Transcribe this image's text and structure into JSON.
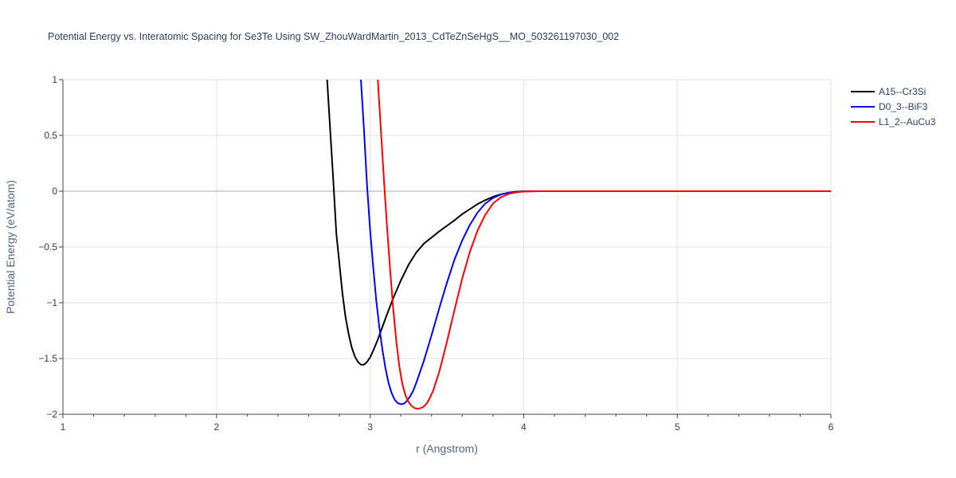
{
  "chart_data": {
    "type": "line",
    "title": "Potential Energy vs. Interatomic Spacing for Se3Te Using SW_ZhouWardMartin_2013_CdTeZnSeHgS__MO_503261197030_002",
    "xlabel": "r (Angstrom)",
    "ylabel": "Potential Energy (eV/atom)",
    "xlim": [
      1,
      6
    ],
    "ylim": [
      -2,
      1
    ],
    "x_ticks": [
      1,
      2,
      3,
      4,
      5,
      6
    ],
    "x_tick_labels": [
      "1",
      "2",
      "3",
      "4",
      "5",
      "6"
    ],
    "y_ticks": [
      1,
      0.5,
      0,
      -0.5,
      -1,
      -1.5,
      -2
    ],
    "y_tick_labels": [
      "1",
      "0.5",
      "0",
      "−0.5",
      "−1",
      "−1.5",
      "−2"
    ],
    "grid": true,
    "legend_position": "top-right",
    "series": [
      {
        "name": "A15--Cr3Si",
        "color": "#000000",
        "x": [
          2.72,
          2.74,
          2.76,
          2.78,
          2.8,
          2.82,
          2.84,
          2.86,
          2.88,
          2.9,
          2.92,
          2.94,
          2.96,
          2.98,
          3.0,
          3.02,
          3.05,
          3.1,
          3.15,
          3.2,
          3.25,
          3.3,
          3.35,
          3.4,
          3.45,
          3.5,
          3.55,
          3.6,
          3.65,
          3.7,
          3.75,
          3.8,
          3.85,
          3.9,
          3.95,
          4.0,
          4.05,
          4.1,
          4.2,
          4.5,
          5.0,
          5.5,
          6.0
        ],
        "y": [
          1.0,
          0.55,
          0.1,
          -0.38,
          -0.65,
          -0.92,
          -1.13,
          -1.28,
          -1.4,
          -1.48,
          -1.53,
          -1.555,
          -1.555,
          -1.53,
          -1.49,
          -1.43,
          -1.33,
          -1.14,
          -0.96,
          -0.8,
          -0.66,
          -0.55,
          -0.47,
          -0.415,
          -0.36,
          -0.31,
          -0.26,
          -0.205,
          -0.16,
          -0.115,
          -0.08,
          -0.05,
          -0.028,
          -0.014,
          -0.005,
          -0.001,
          0.0,
          0.0,
          0.0,
          0.0,
          0.0,
          0.0,
          0.0
        ]
      },
      {
        "name": "D0_3--BiF3",
        "color": "#0000ff",
        "x": [
          2.94,
          2.96,
          2.98,
          3.0,
          3.02,
          3.04,
          3.06,
          3.08,
          3.1,
          3.12,
          3.14,
          3.16,
          3.18,
          3.2,
          3.22,
          3.24,
          3.26,
          3.28,
          3.3,
          3.35,
          3.4,
          3.45,
          3.5,
          3.55,
          3.6,
          3.65,
          3.7,
          3.75,
          3.8,
          3.85,
          3.9,
          3.95,
          4.0,
          4.05,
          4.1,
          4.2,
          4.5,
          5.0,
          5.5,
          6.0
        ],
        "y": [
          1.0,
          0.55,
          0.05,
          -0.35,
          -0.68,
          -0.98,
          -1.22,
          -1.42,
          -1.59,
          -1.72,
          -1.81,
          -1.87,
          -1.9,
          -1.91,
          -1.905,
          -1.88,
          -1.84,
          -1.79,
          -1.72,
          -1.52,
          -1.29,
          -1.05,
          -0.82,
          -0.61,
          -0.44,
          -0.3,
          -0.19,
          -0.11,
          -0.06,
          -0.03,
          -0.013,
          -0.005,
          -0.002,
          -0.001,
          0.0,
          0.0,
          0.0,
          0.0,
          0.0,
          0.0
        ]
      },
      {
        "name": "L1_2--AuCu3",
        "color": "#ff0000",
        "x": [
          3.05,
          3.07,
          3.09,
          3.11,
          3.13,
          3.15,
          3.17,
          3.19,
          3.21,
          3.23,
          3.25,
          3.27,
          3.29,
          3.31,
          3.33,
          3.35,
          3.37,
          3.39,
          3.41,
          3.45,
          3.5,
          3.55,
          3.6,
          3.65,
          3.7,
          3.75,
          3.8,
          3.85,
          3.9,
          3.95,
          4.0,
          4.05,
          4.1,
          4.2,
          4.5,
          5.0,
          5.5,
          6.0
        ],
        "y": [
          1.0,
          0.55,
          0.1,
          -0.32,
          -0.7,
          -1.05,
          -1.34,
          -1.57,
          -1.73,
          -1.83,
          -1.89,
          -1.925,
          -1.945,
          -1.95,
          -1.945,
          -1.93,
          -1.9,
          -1.85,
          -1.79,
          -1.62,
          -1.35,
          -1.06,
          -0.78,
          -0.54,
          -0.35,
          -0.21,
          -0.11,
          -0.055,
          -0.025,
          -0.01,
          -0.004,
          -0.001,
          0.0,
          0.0,
          0.0,
          0.0,
          0.0,
          0.0
        ]
      }
    ]
  }
}
